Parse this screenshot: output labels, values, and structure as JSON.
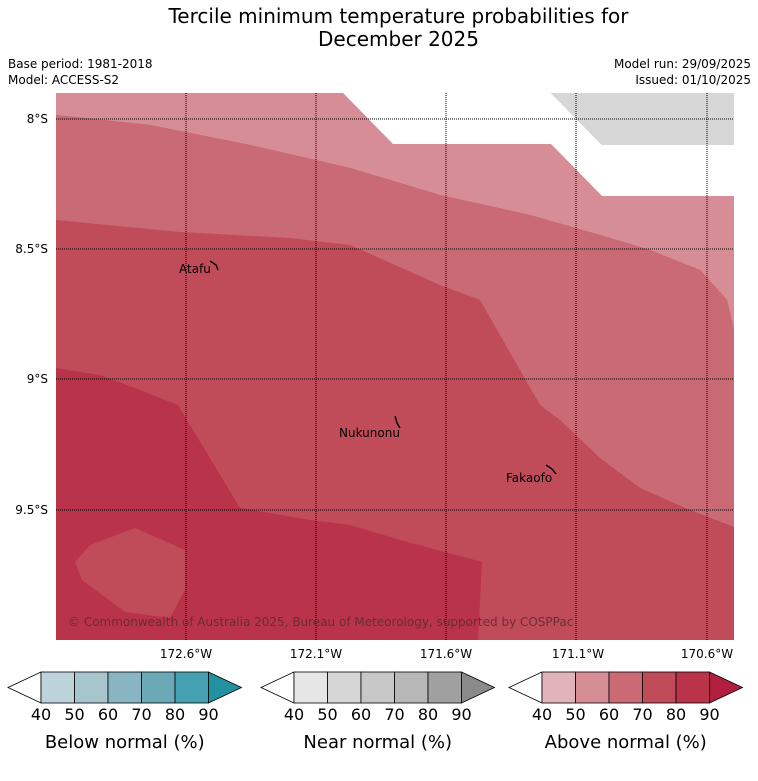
{
  "title": {
    "line1": "Tercile minimum temperature probabilities for",
    "line2": "December 2025"
  },
  "base_period": "Base period: 1981-2018",
  "model": "Model: ACCESS-S2",
  "model_run": "Model run: 29/09/2025",
  "issued": "Issued: 01/10/2025",
  "map": {
    "lat_labels": [
      "8°S",
      "8.5°S",
      "9°S",
      "9.5°S"
    ],
    "lon_labels": [
      "172.6°W",
      "172.1°W",
      "171.6°W",
      "171.1°W",
      "170.6°W"
    ],
    "places": [
      {
        "name": "Atafu"
      },
      {
        "name": "Nukunonu"
      },
      {
        "name": "Fakaofo"
      }
    ],
    "copyright": "© Commonwealth of Australia 2025, Bureau of Meteorology, supported by COSPPac",
    "colors": {
      "above_50": "#d68d96",
      "above_60": "#c96a75",
      "above_70": "#c04b59",
      "above_80": "#b9344a",
      "above_80_dark": "#b52f46",
      "near_50": "#d7d7d7"
    }
  },
  "legends": [
    {
      "id": "below",
      "title": "Below normal (%)",
      "ticks": [
        "40",
        "50",
        "60",
        "70",
        "80",
        "90"
      ],
      "colors": [
        "#ffffff",
        "#bcd3da",
        "#a6c5cd",
        "#88b5c1",
        "#6aa9b6",
        "#45a0b1",
        "#22929f"
      ]
    },
    {
      "id": "near",
      "title": "Near normal (%)",
      "ticks": [
        "40",
        "50",
        "60",
        "70",
        "80",
        "90"
      ],
      "colors": [
        "#ffffff",
        "#e6e6e6",
        "#d6d6d6",
        "#c8c8c8",
        "#b7b7b7",
        "#a0a0a0",
        "#8a8a8a"
      ]
    },
    {
      "id": "above",
      "title": "Above normal (%)",
      "ticks": [
        "40",
        "50",
        "60",
        "70",
        "80",
        "90"
      ],
      "colors": [
        "#ffffff",
        "#e1b4bc",
        "#d68d96",
        "#c96a75",
        "#c04b59",
        "#b9344a",
        "#b0203e"
      ]
    }
  ]
}
